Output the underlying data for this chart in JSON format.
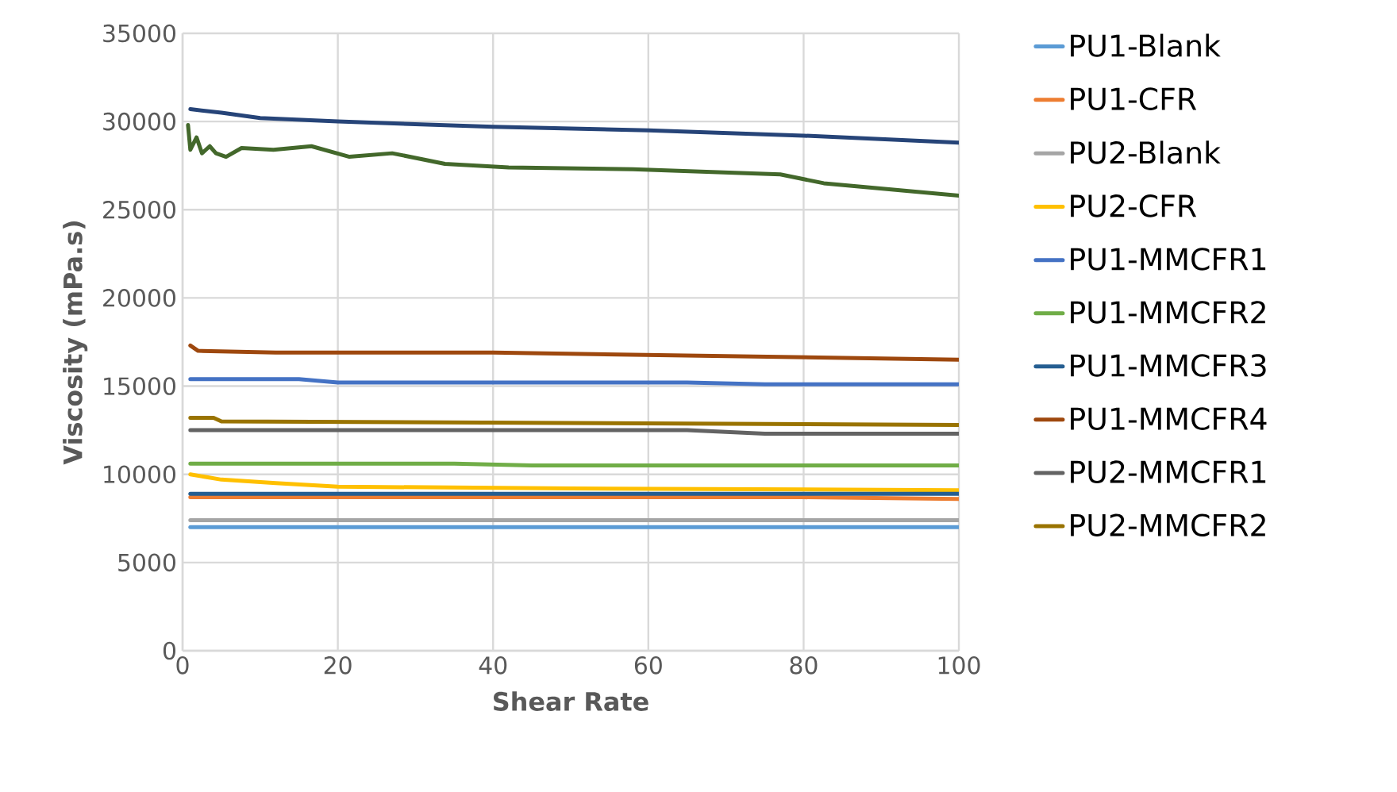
{
  "chart_data": {
    "type": "line",
    "xlabel": "Shear Rate",
    "ylabel": "Viscosity (mPa.s)",
    "xlim": [
      0,
      100
    ],
    "xticks": [
      0,
      20,
      40,
      60,
      80,
      100
    ],
    "ylim": [
      0,
      35000
    ],
    "yticks": [
      0,
      5000,
      10000,
      15000,
      20000,
      25000,
      30000,
      35000
    ],
    "grid": true,
    "legend": "right",
    "marker": "none",
    "series": [
      {
        "name": "PU1-Blank",
        "color": "#5b9bd5",
        "x": [
          1,
          100
        ],
        "values": [
          7000,
          7000
        ]
      },
      {
        "name": "PU1-CFR",
        "color": "#ed7d31",
        "x": [
          1,
          80,
          100
        ],
        "values": [
          8700,
          8700,
          8600
        ]
      },
      {
        "name": "PU2-Blank",
        "color": "#a5a5a5",
        "x": [
          1,
          100
        ],
        "values": [
          7400,
          7400
        ]
      },
      {
        "name": "PU2-CFR",
        "color": "#ffc000",
        "x": [
          1,
          5,
          12,
          20,
          50,
          100
        ],
        "values": [
          10000,
          9700,
          9500,
          9300,
          9200,
          9100
        ]
      },
      {
        "name": "PU1-MMCFR1",
        "color": "#4472c4",
        "x": [
          1,
          15,
          20,
          65,
          75,
          100
        ],
        "values": [
          15400,
          15400,
          15200,
          15200,
          15100,
          15100
        ]
      },
      {
        "name": "PU1-MMCFR2",
        "color": "#70ad47",
        "x": [
          1,
          35,
          45,
          100
        ],
        "values": [
          10600,
          10600,
          10500,
          10500
        ]
      },
      {
        "name": "PU1-MMCFR3",
        "color": "#255e91",
        "x": [
          1,
          100
        ],
        "values": [
          8900,
          8900
        ]
      },
      {
        "name": "PU1-MMCFR4",
        "color": "#9e480e",
        "x": [
          1,
          2,
          12,
          40,
          100
        ],
        "values": [
          17300,
          17000,
          16900,
          16900,
          16500
        ]
      },
      {
        "name": "PU2-MMCFR1",
        "color": "#636363",
        "x": [
          1,
          65,
          75,
          100
        ],
        "values": [
          12500,
          12500,
          12300,
          12300
        ]
      },
      {
        "name": "PU2-MMCFR2",
        "color": "#997300",
        "x": [
          1,
          4,
          5,
          100
        ],
        "values": [
          13200,
          13200,
          13000,
          12800
        ]
      },
      {
        "color": "#264478",
        "x": [
          1,
          5,
          10,
          20,
          40,
          60,
          80,
          100
        ],
        "values": [
          30700,
          30500,
          30200,
          30000,
          29700,
          29500,
          29200,
          28800
        ]
      },
      {
        "color": "#43682b",
        "x": [
          0.7,
          1,
          1.8,
          2.5,
          3.5,
          4.3,
          5.6,
          7.6,
          11.7,
          16.6,
          21.5,
          27,
          33.8,
          42,
          58,
          77,
          82.6,
          100
        ],
        "values": [
          29800,
          28400,
          29100,
          28200,
          28600,
          28200,
          28000,
          28500,
          28400,
          28600,
          28000,
          28200,
          27600,
          27400,
          27300,
          27000,
          26500,
          25800
        ]
      }
    ]
  }
}
